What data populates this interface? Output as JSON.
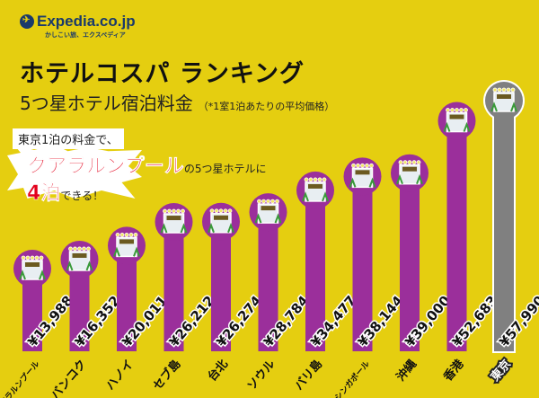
{
  "logo": {
    "name": "Expedia.co.jp",
    "tagline": "かしこい旅、エクスペディア"
  },
  "title": "ホテルコスパ ランキング",
  "subtitle": "5つ星ホテル宿泊料金",
  "note": "（*1室1泊あたりの平均価格）",
  "callout": {
    "line1": "東京1泊の料金で、",
    "highlight": "クアラルンプール",
    "line2": "の5つ星ホテルに",
    "nights": "4泊",
    "line3": "できる！"
  },
  "colors": {
    "background": "#E5CE10",
    "bar": "#9B2F9B",
    "highlight_bar": "#808080",
    "callout_red": "#e3001b"
  },
  "chart_data": {
    "type": "bar",
    "categories": [
      "クアラルンプール",
      "バンコク",
      "ハノイ",
      "セブ島",
      "台北",
      "ソウル",
      "バリ島",
      "シンガポール",
      "沖縄",
      "香港",
      "東京"
    ],
    "values": [
      13988,
      16352,
      20011,
      26212,
      26274,
      28784,
      34477,
      38144,
      39000,
      52683,
      57990
    ],
    "value_labels": [
      "¥13,988",
      "¥16,352",
      "¥20,011",
      "¥26,212",
      "¥26,274",
      "¥28,784",
      "¥34,477",
      "¥38,144",
      "¥39,000",
      "¥52,683",
      "¥57,990"
    ],
    "highlight": "東京",
    "icon": "hotel-icon",
    "icon_text": "HOTEL"
  }
}
